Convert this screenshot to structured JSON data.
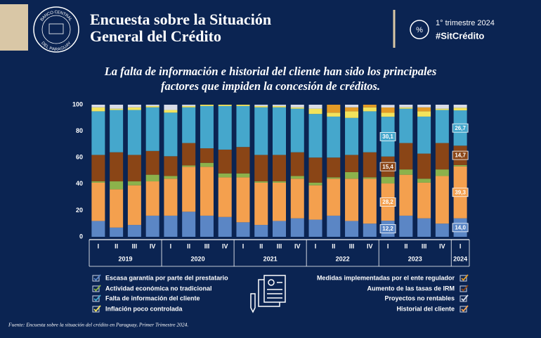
{
  "header": {
    "logo": [
      "BANCO CENTRAL",
      "DEL PARAGUAY"
    ],
    "title": [
      "Encuesta sobre la Situación",
      "General del Crédito"
    ],
    "period": "1° trimestre 2024",
    "hashtag": "#SitCrédito"
  },
  "chart_data": {
    "type": "stacked-bar",
    "title": [
      "La falta de información e historial del cliente han sido los principales",
      "factores que impiden la concesión de créditos."
    ],
    "groups": [
      {
        "label": "2019",
        "categories": [
          "I",
          "II",
          "III",
          "IV"
        ]
      },
      {
        "label": "2020",
        "categories": [
          "I",
          "II",
          "III",
          "IV"
        ]
      },
      {
        "label": "2021",
        "categories": [
          "I",
          "II",
          "III",
          "IV"
        ]
      },
      {
        "label": "2022",
        "categories": [
          "I",
          "II",
          "III",
          "IV"
        ]
      },
      {
        "label": "2023",
        "categories": [
          "I",
          "II",
          "III",
          "IV"
        ]
      },
      {
        "label": "2024",
        "categories": [
          "I"
        ]
      }
    ],
    "ylim": [
      0,
      100
    ],
    "yticks": [
      0,
      20,
      40,
      60,
      80,
      100
    ],
    "grid": false,
    "series": [
      {
        "name": "Escasa garantía por parte del prestatario",
        "color": "#5b86c5",
        "values": [
          12,
          7,
          9,
          16,
          16,
          19,
          16,
          15,
          11,
          9,
          12,
          14,
          13,
          16,
          12,
          10,
          12.2,
          16,
          14,
          10,
          14.0
        ],
        "value_labels": [
          null,
          null,
          null,
          null,
          null,
          null,
          null,
          null,
          null,
          null,
          null,
          null,
          null,
          null,
          null,
          null,
          "12,2",
          null,
          null,
          null,
          "14,0"
        ]
      },
      {
        "name": "Historial del cliente",
        "color": "#f4a04e",
        "values": [
          29,
          29,
          30,
          26,
          28,
          34,
          37,
          30,
          34,
          32,
          29,
          30,
          26,
          28,
          32,
          34,
          28.2,
          31,
          27,
          36,
          39.3
        ],
        "value_labels": [
          null,
          null,
          null,
          null,
          null,
          null,
          null,
          null,
          null,
          null,
          null,
          null,
          null,
          null,
          null,
          null,
          "28,2",
          null,
          null,
          null,
          "39,3"
        ]
      },
      {
        "name": "Actividad económica no tradicional",
        "color": "#8cb24b",
        "values": [
          1,
          6,
          3,
          5,
          2,
          1,
          3,
          3,
          3,
          1,
          1,
          2,
          2,
          1,
          5,
          1,
          5,
          4,
          3,
          5,
          1
        ]
      },
      {
        "name": "Aumento de las tasas de IRM",
        "color": "#8a4516",
        "values": [
          20,
          22,
          20,
          18,
          15,
          17,
          11,
          18,
          20,
          20,
          20,
          18,
          19,
          15,
          13,
          19,
          15.4,
          20,
          19,
          20,
          14.7
        ],
        "value_labels": [
          null,
          null,
          null,
          null,
          null,
          null,
          null,
          null,
          null,
          null,
          null,
          null,
          null,
          null,
          null,
          null,
          "15,4",
          null,
          null,
          null,
          "14,7"
        ]
      },
      {
        "name": "Falta de información del cliente",
        "color": "#45a7cc",
        "values": [
          33,
          32,
          34,
          33,
          33,
          27,
          32,
          33,
          31,
          36,
          36,
          33,
          33,
          31,
          28,
          31,
          30.1,
          26,
          28,
          25,
          26.7
        ],
        "value_labels": [
          null,
          null,
          null,
          null,
          null,
          null,
          null,
          null,
          null,
          null,
          null,
          null,
          null,
          null,
          null,
          null,
          "30,1",
          null,
          null,
          null,
          "26,7"
        ]
      },
      {
        "name": "Inflación poco controlada",
        "color": "#f3e35c",
        "values": [
          3,
          1,
          2,
          1,
          2,
          1,
          1,
          1,
          1,
          1,
          1,
          1,
          4,
          3,
          5,
          3,
          3,
          1,
          4,
          1,
          2
        ]
      },
      {
        "name": "Medidas implementadas por el ente regulador",
        "color": "#e39a26",
        "values": [
          0,
          0,
          0,
          0,
          0,
          0,
          0,
          0,
          0,
          0,
          0,
          0,
          0,
          6,
          3,
          2,
          4,
          0,
          3,
          0,
          0
        ]
      },
      {
        "name": "Proyectos no rentables",
        "color": "#d8dce8",
        "values": [
          2,
          3,
          2,
          1,
          4,
          1,
          0,
          0,
          0,
          1,
          1,
          2,
          3,
          0,
          2,
          0,
          2,
          2,
          2,
          3,
          2.3
        ]
      }
    ],
    "source": "Fuente: Encuesta sobre la situación del crédito en Paraguay, Primer Trimestre 2024."
  }
}
